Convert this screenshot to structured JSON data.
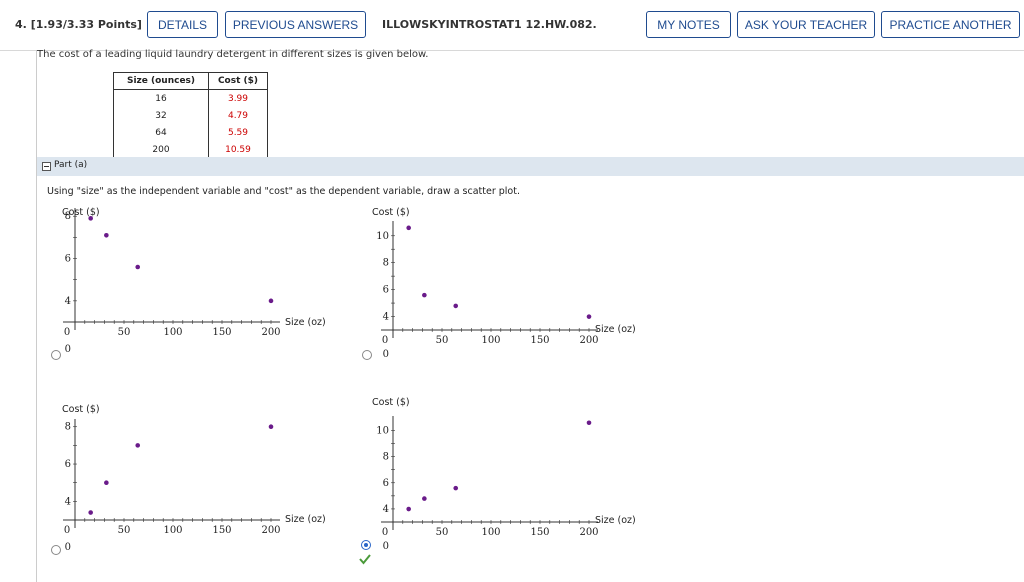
{
  "header": {
    "question_number": "4.",
    "points": "[1.93/3.33 Points]",
    "details": "DETAILS",
    "previous_answers": "PREVIOUS ANSWERS",
    "question_id": "ILLOWSKYINTROSTAT1 12.HW.082.",
    "my_notes": "MY NOTES",
    "ask_teacher": "ASK YOUR TEACHER",
    "practice_another": "PRACTICE ANOTHER"
  },
  "prompt": "The cost of a leading liquid laundry detergent in different sizes is given below.",
  "table": {
    "headers": [
      "Size (ounces)",
      "Cost ($)"
    ],
    "rows": [
      [
        "16",
        "3.99"
      ],
      [
        "32",
        "4.79"
      ],
      [
        "64",
        "5.59"
      ],
      [
        "200",
        "10.59"
      ]
    ],
    "cost_color": "#cc0000"
  },
  "part": {
    "label": "Part (a)"
  },
  "instruction": "Using \"size\" as the independent variable and \"cost\" as the dependent variable, draw a scatter plot.",
  "options": [
    {
      "selected": false,
      "correct": false
    },
    {
      "selected": false,
      "correct": false
    },
    {
      "selected": false,
      "correct": false
    },
    {
      "selected": true,
      "correct": true
    }
  ],
  "chart_data": [
    {
      "type": "scatter",
      "ylabel": "Cost ($)",
      "xlabel": "Size (oz)",
      "x_ticks": [
        "0",
        "50",
        "100",
        "150",
        "200"
      ],
      "y_ticks": [
        "8",
        "6",
        "4"
      ],
      "y_origin_label": "0",
      "x": [
        16,
        32,
        64,
        200
      ],
      "y": [
        7.9,
        7.1,
        5.6,
        4.0
      ],
      "marker_color": "#6a1b8a"
    },
    {
      "type": "scatter",
      "ylabel": "Cost ($)",
      "xlabel": "Size (oz)",
      "x_ticks": [
        "0",
        "50",
        "100",
        "150",
        "200"
      ],
      "y_ticks": [
        "10",
        "8",
        "6",
        "4"
      ],
      "y_origin_label": "0",
      "x": [
        16,
        32,
        64,
        200
      ],
      "y": [
        10.59,
        5.59,
        4.79,
        3.99
      ],
      "marker_color": "#6a1b8a"
    },
    {
      "type": "scatter",
      "ylabel": "Cost ($)",
      "xlabel": "Size (oz)",
      "x_ticks": [
        "0",
        "50",
        "100",
        "150",
        "200"
      ],
      "y_ticks": [
        "8",
        "6",
        "4"
      ],
      "y_origin_label": "0",
      "x": [
        16,
        32,
        64,
        200
      ],
      "y": [
        3.4,
        5.0,
        7.0,
        8.0
      ],
      "marker_color": "#6a1b8a"
    },
    {
      "type": "scatter",
      "ylabel": "Cost ($)",
      "xlabel": "Size (oz)",
      "x_ticks": [
        "0",
        "50",
        "100",
        "150",
        "200"
      ],
      "y_ticks": [
        "10",
        "8",
        "6",
        "4"
      ],
      "y_origin_label": "0",
      "x": [
        16,
        32,
        64,
        200
      ],
      "y": [
        3.99,
        4.79,
        5.59,
        10.59
      ],
      "marker_color": "#6a1b8a"
    }
  ]
}
